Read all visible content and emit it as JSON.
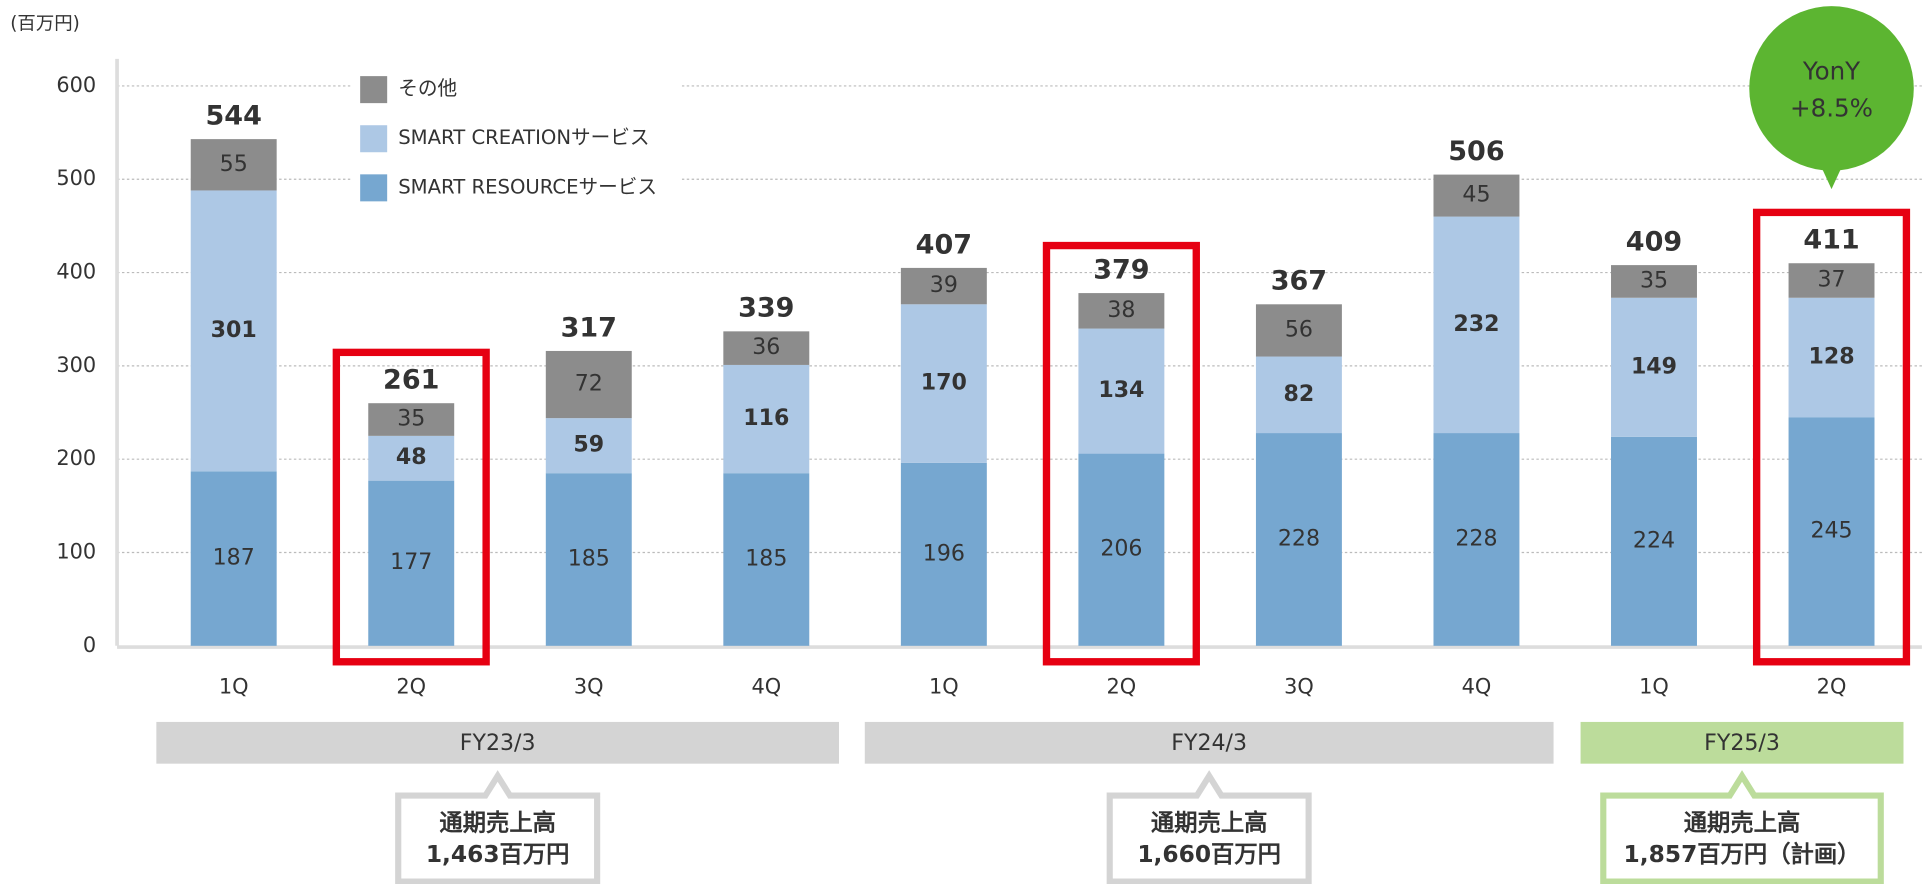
{
  "chart_data": {
    "type": "stacked-bar",
    "y_unit": "(百万円)",
    "categories": [
      "1Q",
      "2Q",
      "3Q",
      "4Q",
      "1Q",
      "2Q",
      "3Q",
      "4Q",
      "1Q",
      "2Q"
    ],
    "series": [
      {
        "name": "SMART RESOURCEサービス",
        "color": "#76a7d0",
        "values": [
          187,
          177,
          185,
          185,
          196,
          206,
          228,
          228,
          224,
          245
        ]
      },
      {
        "name": "SMART CREATIONサービス",
        "color": "#adc8e5",
        "values": [
          301,
          48,
          59,
          116,
          170,
          134,
          82,
          232,
          149,
          128
        ]
      },
      {
        "name": "その他",
        "color": "#8c8c8c",
        "values": [
          55,
          35,
          72,
          36,
          39,
          38,
          56,
          45,
          35,
          37
        ]
      }
    ],
    "totals": [
      544,
      261,
      317,
      339,
      407,
      379,
      367,
      506,
      409,
      411
    ],
    "ylim": [
      0,
      600
    ],
    "yticks": [
      0,
      100,
      200,
      300,
      400,
      500,
      600
    ],
    "grid": true,
    "groups": [
      {
        "name": "FY23/3",
        "note": [
          "通期売上高",
          "1,463百万円"
        ]
      },
      {
        "name": "FY24/3",
        "note": [
          "通期売上高",
          "1,660百万円"
        ]
      },
      {
        "name": "FY25/3",
        "note": [
          "通期売上高",
          "1,857百万円（計画）"
        ]
      }
    ],
    "callout": [
      "YonY",
      "+8.5%"
    ]
  }
}
